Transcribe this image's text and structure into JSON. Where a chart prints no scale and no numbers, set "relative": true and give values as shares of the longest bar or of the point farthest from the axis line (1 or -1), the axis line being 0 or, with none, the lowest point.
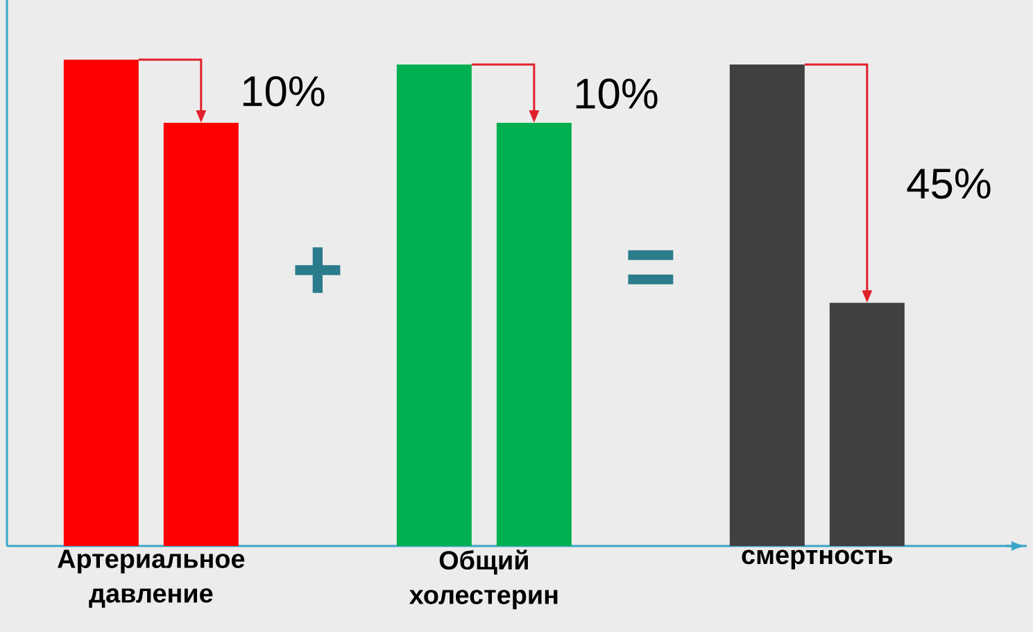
{
  "chart_data": {
    "type": "bar",
    "relative": true,
    "categories": [
      "Артериальное давление",
      "Общий холестерин",
      "смертность"
    ],
    "series": [
      {
        "colors": [
          "#ff0000",
          "#00b050",
          "#404040"
        ],
        "values": [
          1,
          0.99,
          0.99
        ]
      },
      {
        "colors": [
          "#ff0000",
          "#00b050",
          "#404040"
        ],
        "values": [
          0.87,
          0.87,
          0.5
        ]
      }
    ],
    "annotations": [
      "10%",
      "10%",
      "45%",
      "+",
      "="
    ]
  }
}
